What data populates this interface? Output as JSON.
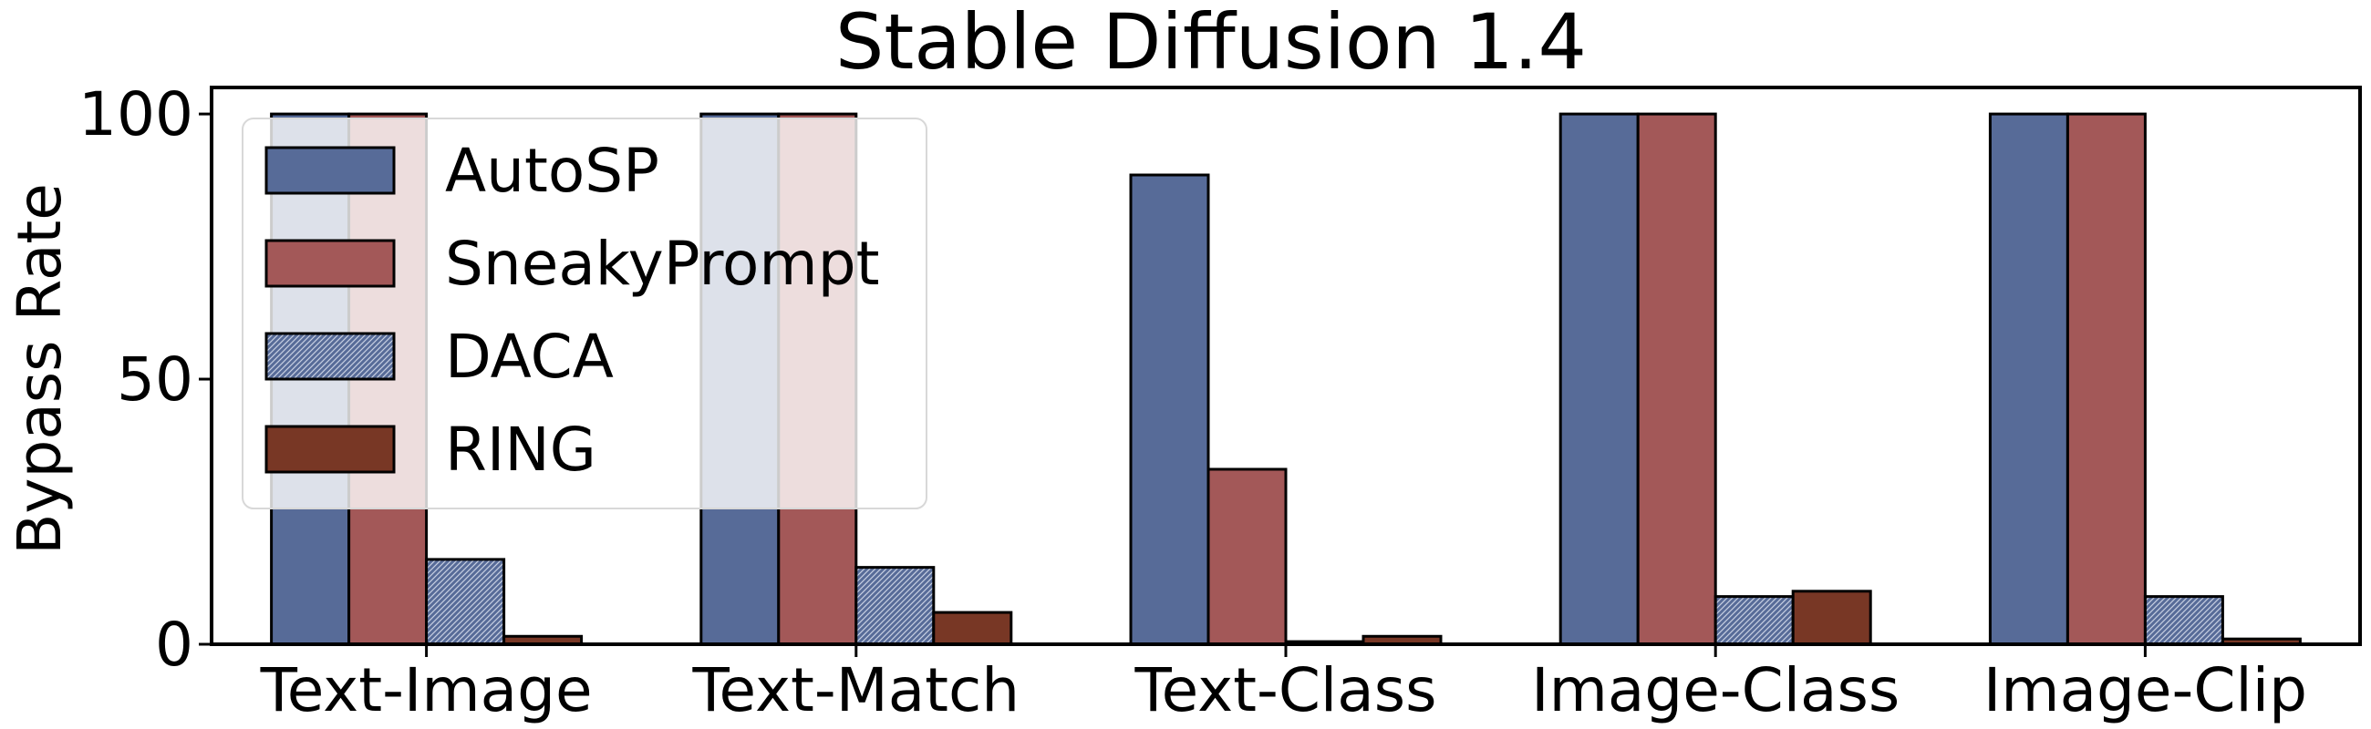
{
  "chart_data": {
    "type": "bar",
    "title": "Stable Diffusion 1.4",
    "xlabel": "",
    "ylabel": "Bypass Rate",
    "categories": [
      "Text-Image",
      "Text-Match",
      "Text-Class",
      "Image-Class",
      "Image-Clip"
    ],
    "series": [
      {
        "name": "AutoSP",
        "values": [
          100,
          100,
          88.5,
          100,
          100
        ],
        "color": "#576b98",
        "pattern": "solid"
      },
      {
        "name": "SneakyPrompt",
        "values": [
          100,
          100,
          33,
          100,
          100
        ],
        "color": "#a35858",
        "pattern": "solid"
      },
      {
        "name": "DACA",
        "values": [
          16,
          14.5,
          0.5,
          9,
          9
        ],
        "color": "#576b98",
        "pattern": "hatched"
      },
      {
        "name": "RING",
        "values": [
          1.5,
          6,
          1.5,
          10,
          1
        ],
        "color": "#783725",
        "pattern": "solid"
      }
    ],
    "yticks": [
      0,
      50,
      100
    ],
    "ylim": [
      0,
      105
    ],
    "grid": false,
    "legend": "upper-left"
  }
}
